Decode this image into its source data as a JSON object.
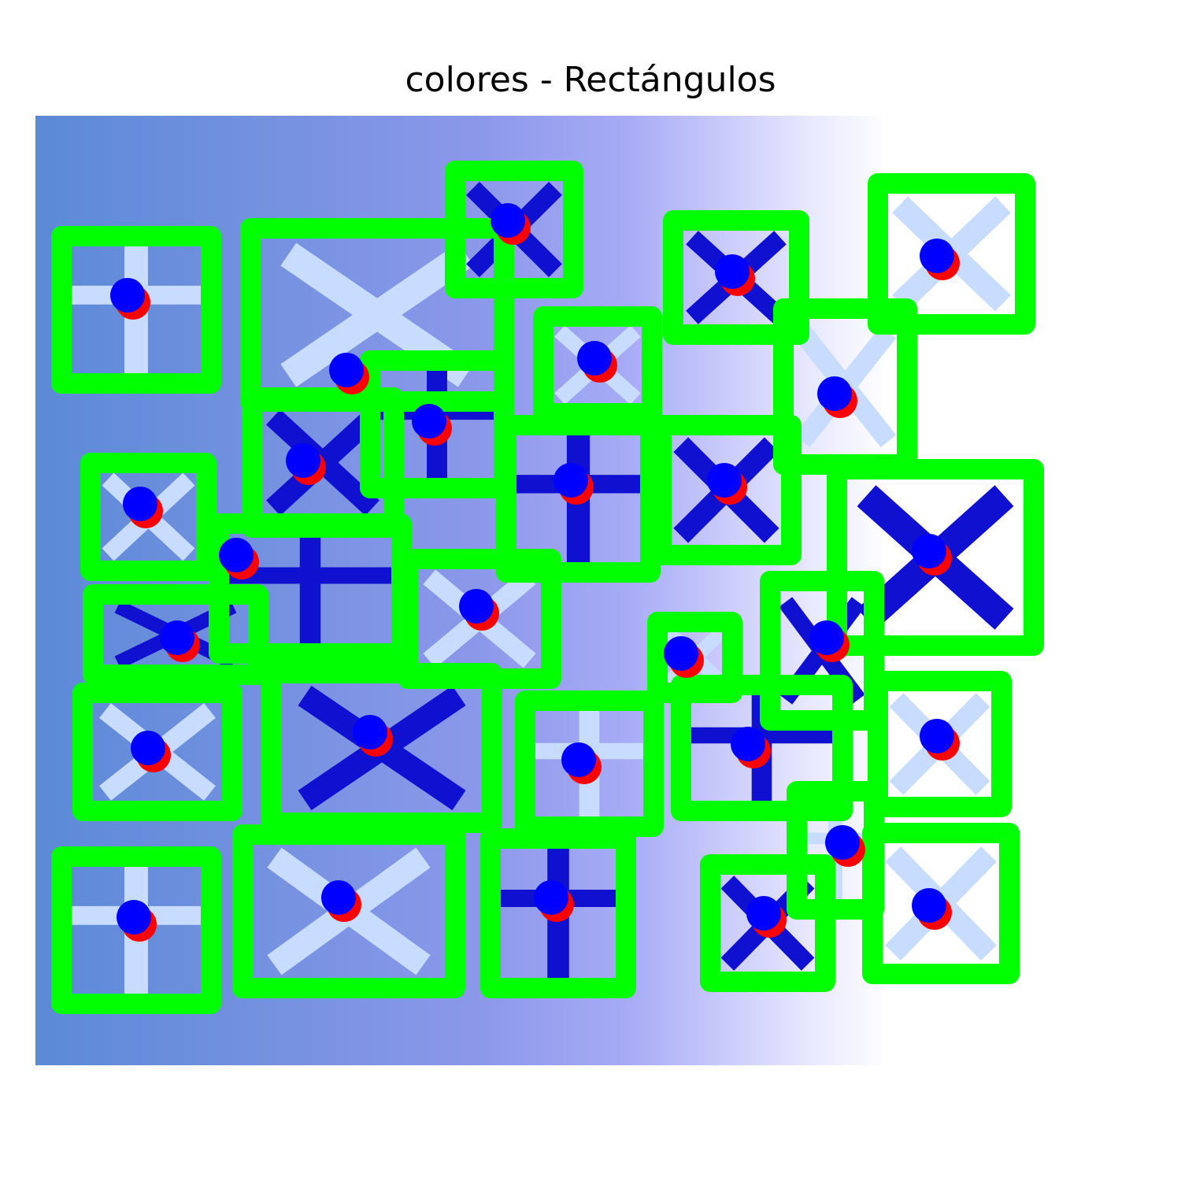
{
  "title": "colores - Rectángulos",
  "detected_count": 31,
  "colors": {
    "box": "#00ff00",
    "centroid_a": "#ff0000",
    "centroid_b": "#0000ff",
    "glyph_dark": "#1010d0",
    "glyph_light": "#c8dcff",
    "gradient_left": "#5b8ad6",
    "gradient_mid": "#9aa4f2",
    "gradient_right": "#ffffff"
  }
}
